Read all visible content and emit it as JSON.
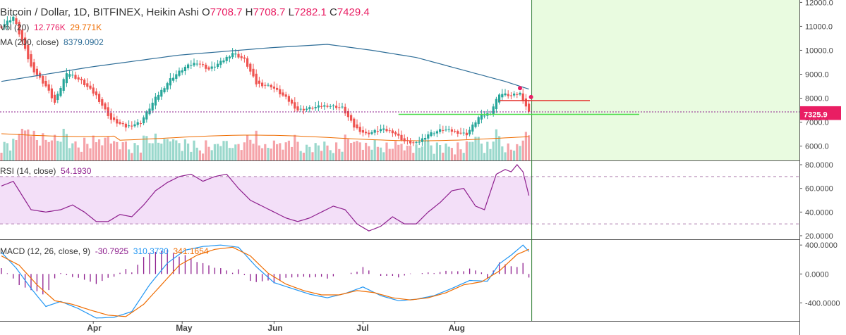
{
  "header": {
    "symbol": "Bitcoin / Dollar, 1D, BITFINEX, Heikin Ashi",
    "open_key": "O",
    "open": "7708.7",
    "high_key": "H",
    "high": "7708.7",
    "low_key": "L",
    "low": "7282.1",
    "close_key": "C",
    "close": "7429.4"
  },
  "indicators": {
    "vol_label": "Vol (20)",
    "vol_value": "12.776K",
    "vol_ma_value": "29.771K",
    "ma_label": "MA (200, close)",
    "ma_value": "8379.0902",
    "rsi_label": "RSI (14, close)",
    "rsi_value": "54.1930",
    "macd_label": "MACD (12, 26, close, 9)",
    "macd_hist": "-30.7925",
    "macd_line": "310.3730",
    "macd_signal": "341.1654"
  },
  "price_labels": {
    "last": "7429.4",
    "level": "7325.9"
  },
  "colors": {
    "up": "#26a69a",
    "down": "#ef5350",
    "ma": "#2f6e98",
    "rsi": "#8e1f8e",
    "rsi_band": "#f3dff8",
    "macd": "#2196f3",
    "signal": "#ef6c00",
    "hist": "#8e1f8e",
    "projection": "#e9fbe0",
    "level_line": "#4cdb4c",
    "resistance_line": "#e53935"
  },
  "chart_data": {
    "type": "candlestick",
    "title": "Bitcoin / Dollar, 1D, BITFINEX, Heikin Ashi",
    "x_ticks": [
      "Apr",
      "May",
      "Jun",
      "Jul",
      "Aug"
    ],
    "price_axis": {
      "ticks": [
        "6000.0",
        "7000.0",
        "8000.0",
        "9000.0",
        "10000.0",
        "11000.0",
        "12000.0"
      ],
      "ylim": [
        5400,
        12100
      ]
    },
    "rsi_axis": {
      "ticks": [
        "20.0000",
        "40.0000",
        "60.0000",
        "80.0000"
      ],
      "ylim": [
        17,
        83
      ],
      "upper_band": 70,
      "lower_band": 30
    },
    "macd_axis": {
      "ticks": [
        "-400.0000",
        "0.0000",
        "400.0000"
      ],
      "ylim": [
        -650,
        470
      ]
    },
    "annotations": {
      "horizontal_level": 7325.9,
      "resistance_level": 7900
    },
    "anchors": [
      {
        "day": 0,
        "price": 11000
      },
      {
        "day": 4,
        "price": 11400
      },
      {
        "day": 10,
        "price": 9300
      },
      {
        "day": 15,
        "price": 8500
      },
      {
        "day": 18,
        "price": 7800
      },
      {
        "day": 22,
        "price": 9100
      },
      {
        "day": 27,
        "price": 8700
      },
      {
        "day": 32,
        "price": 8100
      },
      {
        "day": 37,
        "price": 7100
      },
      {
        "day": 42,
        "price": 6800
      },
      {
        "day": 47,
        "price": 7000
      },
      {
        "day": 52,
        "price": 8000
      },
      {
        "day": 57,
        "price": 8800
      },
      {
        "day": 62,
        "price": 9300
      },
      {
        "day": 66,
        "price": 9500
      },
      {
        "day": 70,
        "price": 9200
      },
      {
        "day": 74,
        "price": 9500
      },
      {
        "day": 78,
        "price": 9900
      },
      {
        "day": 82,
        "price": 9600
      },
      {
        "day": 86,
        "price": 8600
      },
      {
        "day": 91,
        "price": 8500
      },
      {
        "day": 96,
        "price": 8000
      },
      {
        "day": 100,
        "price": 7500
      },
      {
        "day": 105,
        "price": 7600
      },
      {
        "day": 110,
        "price": 7700
      },
      {
        "day": 115,
        "price": 7600
      },
      {
        "day": 119,
        "price": 6800
      },
      {
        "day": 123,
        "price": 6500
      },
      {
        "day": 128,
        "price": 6700
      },
      {
        "day": 132,
        "price": 6600
      },
      {
        "day": 136,
        "price": 6200
      },
      {
        "day": 140,
        "price": 6100
      },
      {
        "day": 144,
        "price": 6500
      },
      {
        "day": 149,
        "price": 6700
      },
      {
        "day": 153,
        "price": 6600
      },
      {
        "day": 157,
        "price": 6500
      },
      {
        "day": 161,
        "price": 7200
      },
      {
        "day": 165,
        "price": 7400
      },
      {
        "day": 168,
        "price": 8200
      },
      {
        "day": 172,
        "price": 8100
      },
      {
        "day": 175,
        "price": 8200
      },
      {
        "day": 178,
        "price": 7400
      }
    ],
    "ma200": [
      {
        "day": 0,
        "value": 8700
      },
      {
        "day": 30,
        "value": 9300
      },
      {
        "day": 60,
        "value": 9800
      },
      {
        "day": 90,
        "value": 10100
      },
      {
        "day": 110,
        "value": 10250
      },
      {
        "day": 125,
        "value": 10000
      },
      {
        "day": 140,
        "value": 9700
      },
      {
        "day": 155,
        "value": 9200
      },
      {
        "day": 170,
        "value": 8700
      },
      {
        "day": 178,
        "value": 8379
      }
    ],
    "rsi": [
      {
        "day": 0,
        "value": 62
      },
      {
        "day": 4,
        "value": 66
      },
      {
        "day": 10,
        "value": 42
      },
      {
        "day": 15,
        "value": 40
      },
      {
        "day": 20,
        "value": 42
      },
      {
        "day": 24,
        "value": 46
      },
      {
        "day": 28,
        "value": 40
      },
      {
        "day": 32,
        "value": 32
      },
      {
        "day": 36,
        "value": 32
      },
      {
        "day": 40,
        "value": 38
      },
      {
        "day": 44,
        "value": 36
      },
      {
        "day": 48,
        "value": 46
      },
      {
        "day": 52,
        "value": 58
      },
      {
        "day": 56,
        "value": 65
      },
      {
        "day": 60,
        "value": 70
      },
      {
        "day": 64,
        "value": 72
      },
      {
        "day": 68,
        "value": 66
      },
      {
        "day": 72,
        "value": 70
      },
      {
        "day": 76,
        "value": 72
      },
      {
        "day": 80,
        "value": 60
      },
      {
        "day": 84,
        "value": 50
      },
      {
        "day": 88,
        "value": 45
      },
      {
        "day": 92,
        "value": 40
      },
      {
        "day": 96,
        "value": 35
      },
      {
        "day": 100,
        "value": 32
      },
      {
        "day": 104,
        "value": 35
      },
      {
        "day": 108,
        "value": 40
      },
      {
        "day": 112,
        "value": 45
      },
      {
        "day": 116,
        "value": 42
      },
      {
        "day": 120,
        "value": 30
      },
      {
        "day": 124,
        "value": 24
      },
      {
        "day": 128,
        "value": 28
      },
      {
        "day": 132,
        "value": 36
      },
      {
        "day": 136,
        "value": 30
      },
      {
        "day": 140,
        "value": 30
      },
      {
        "day": 144,
        "value": 40
      },
      {
        "day": 148,
        "value": 48
      },
      {
        "day": 152,
        "value": 58
      },
      {
        "day": 156,
        "value": 60
      },
      {
        "day": 160,
        "value": 45
      },
      {
        "day": 163,
        "value": 42
      },
      {
        "day": 167,
        "value": 72
      },
      {
        "day": 170,
        "value": 76
      },
      {
        "day": 172,
        "value": 74
      },
      {
        "day": 174,
        "value": 80
      },
      {
        "day": 176,
        "value": 74
      },
      {
        "day": 178,
        "value": 54
      }
    ],
    "macd_line": [
      {
        "day": 0,
        "value": 300
      },
      {
        "day": 5,
        "value": 80
      },
      {
        "day": 10,
        "value": -200
      },
      {
        "day": 15,
        "value": -450
      },
      {
        "day": 20,
        "value": -380
      },
      {
        "day": 26,
        "value": -480
      },
      {
        "day": 32,
        "value": -610
      },
      {
        "day": 38,
        "value": -600
      },
      {
        "day": 44,
        "value": -520
      },
      {
        "day": 50,
        "value": -150
      },
      {
        "day": 56,
        "value": 150
      },
      {
        "day": 62,
        "value": 330
      },
      {
        "day": 68,
        "value": 380
      },
      {
        "day": 74,
        "value": 400
      },
      {
        "day": 80,
        "value": 370
      },
      {
        "day": 86,
        "value": 100
      },
      {
        "day": 92,
        "value": -120
      },
      {
        "day": 98,
        "value": -200
      },
      {
        "day": 104,
        "value": -280
      },
      {
        "day": 110,
        "value": -330
      },
      {
        "day": 116,
        "value": -270
      },
      {
        "day": 122,
        "value": -180
      },
      {
        "day": 128,
        "value": -300
      },
      {
        "day": 134,
        "value": -370
      },
      {
        "day": 140,
        "value": -350
      },
      {
        "day": 146,
        "value": -300
      },
      {
        "day": 152,
        "value": -200
      },
      {
        "day": 158,
        "value": -90
      },
      {
        "day": 164,
        "value": -100
      },
      {
        "day": 168,
        "value": 140
      },
      {
        "day": 172,
        "value": 260
      },
      {
        "day": 176,
        "value": 400
      },
      {
        "day": 178,
        "value": 310
      }
    ],
    "signal_line": [
      {
        "day": 0,
        "value": 250
      },
      {
        "day": 6,
        "value": 120
      },
      {
        "day": 12,
        "value": -150
      },
      {
        "day": 18,
        "value": -370
      },
      {
        "day": 24,
        "value": -420
      },
      {
        "day": 30,
        "value": -500
      },
      {
        "day": 36,
        "value": -570
      },
      {
        "day": 42,
        "value": -590
      },
      {
        "day": 48,
        "value": -420
      },
      {
        "day": 54,
        "value": -150
      },
      {
        "day": 60,
        "value": 120
      },
      {
        "day": 66,
        "value": 260
      },
      {
        "day": 72,
        "value": 340
      },
      {
        "day": 78,
        "value": 370
      },
      {
        "day": 84,
        "value": 250
      },
      {
        "day": 90,
        "value": 10
      },
      {
        "day": 96,
        "value": -140
      },
      {
        "day": 102,
        "value": -230
      },
      {
        "day": 108,
        "value": -290
      },
      {
        "day": 114,
        "value": -290
      },
      {
        "day": 120,
        "value": -230
      },
      {
        "day": 126,
        "value": -260
      },
      {
        "day": 132,
        "value": -330
      },
      {
        "day": 138,
        "value": -360
      },
      {
        "day": 144,
        "value": -330
      },
      {
        "day": 150,
        "value": -260
      },
      {
        "day": 156,
        "value": -150
      },
      {
        "day": 162,
        "value": -110
      },
      {
        "day": 168,
        "value": 40
      },
      {
        "day": 174,
        "value": 270
      },
      {
        "day": 178,
        "value": 341
      }
    ]
  }
}
